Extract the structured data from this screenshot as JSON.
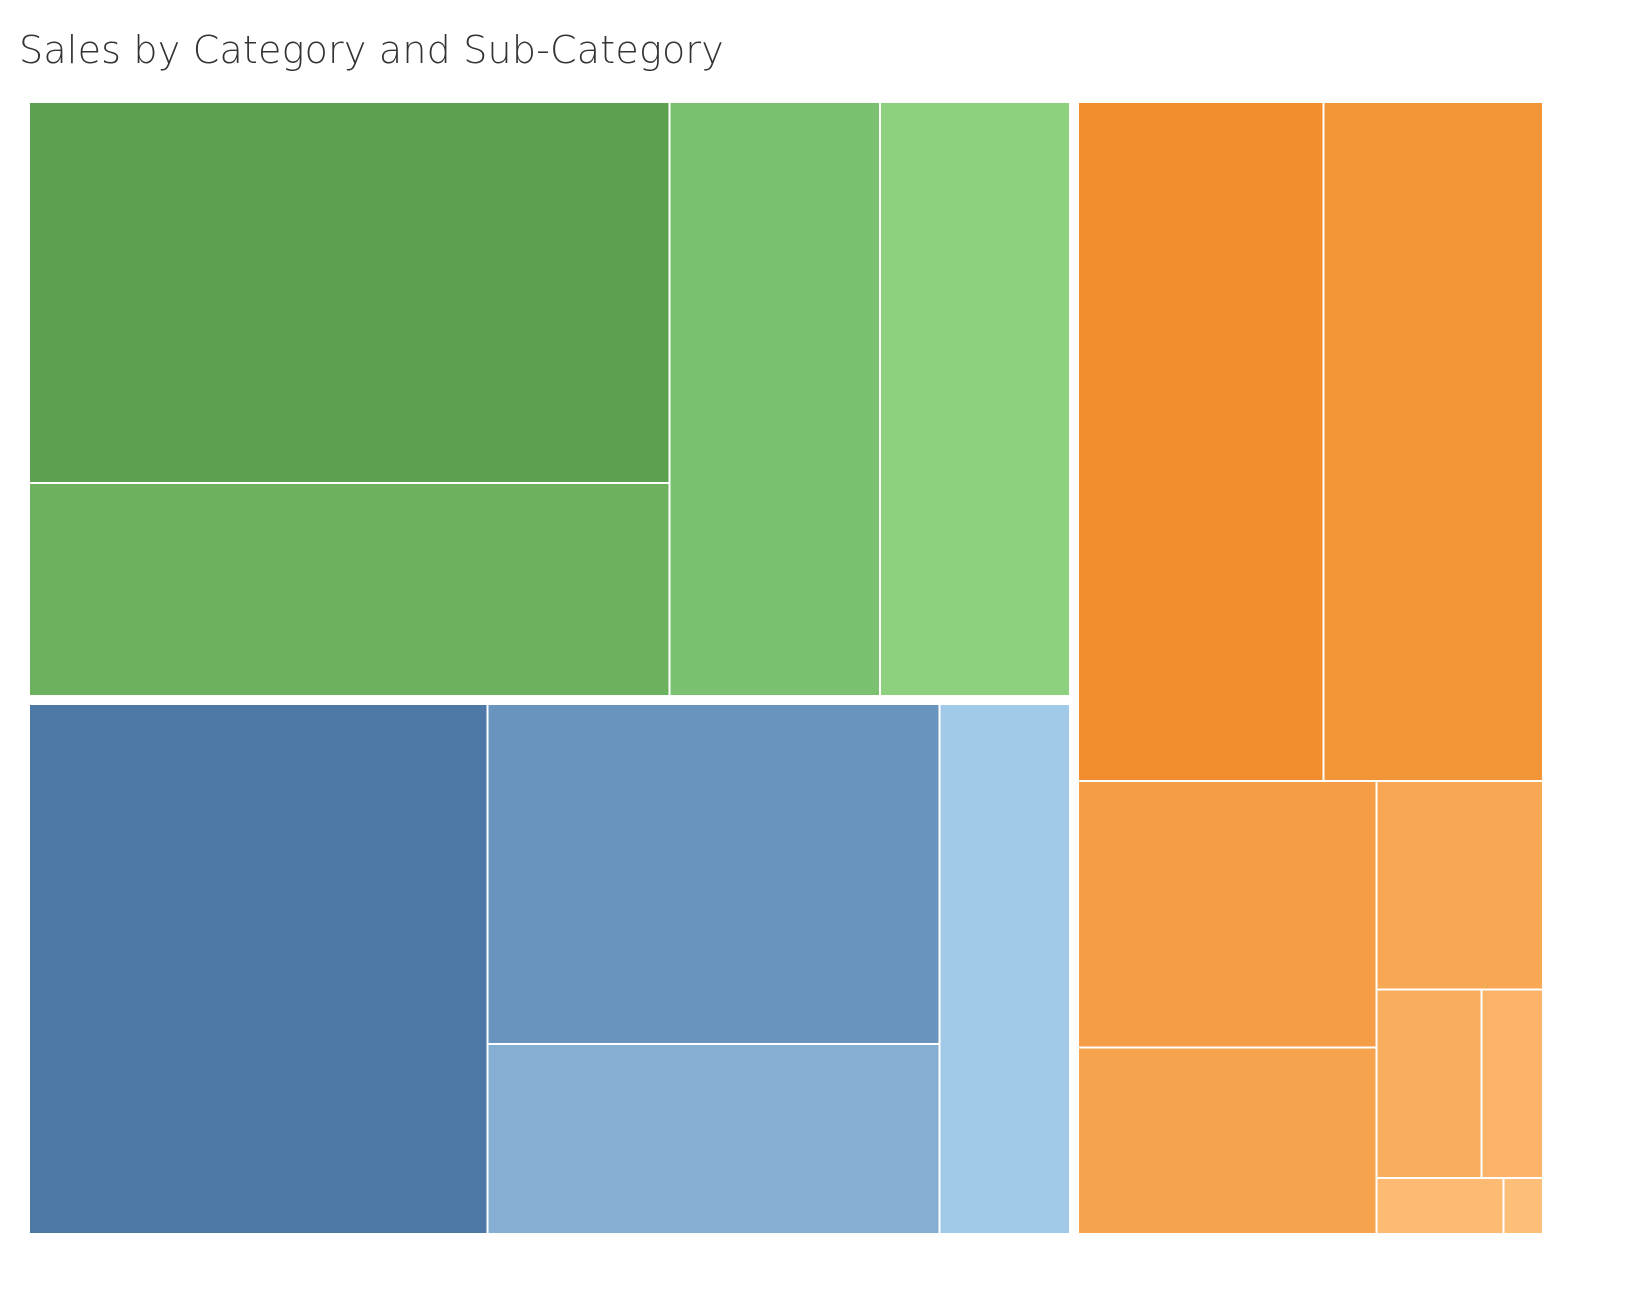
{
  "title": "Sales by Category and Sub-Category",
  "chart_data": {
    "type": "treemap",
    "title": "Sales by Category and Sub-Category",
    "legend": "none",
    "labels_shown": false,
    "groups": [
      {
        "name": "",
        "color_family": "green",
        "tiles": [
          {
            "rel_size": 24448,
            "color": "#5CA150"
          },
          {
            "rel_size": 13686,
            "color": "#6CB25E"
          },
          {
            "rel_size": 12544,
            "color": "#7AC170"
          },
          {
            "rel_size": 11306,
            "color": "#8DD17F"
          }
        ]
      },
      {
        "name": "",
        "color_family": "blue",
        "tiles": [
          {
            "rel_size": 24380,
            "color": "#4E79A7"
          },
          {
            "rel_size": 15424,
            "color": "#6894BD"
          },
          {
            "rel_size": 8608,
            "color": "#84AFD2"
          },
          {
            "rel_size": 6928,
            "color": "#A0CAE8"
          }
        ]
      },
      {
        "name": "",
        "color_family": "orange",
        "tiles": [
          {
            "rel_size": 16695,
            "color": "#F28E2E"
          },
          {
            "rel_size": 14898,
            "color": "#F29536"
          },
          {
            "rel_size": 7951,
            "color": "#F59E47"
          },
          {
            "rel_size": 5576,
            "color": "#F5A34C"
          },
          {
            "rel_size": 3468,
            "color": "#F8A854"
          },
          {
            "rel_size": 1979,
            "color": "#F9AD5F"
          },
          {
            "rel_size": 1163,
            "color": "#FBB36A"
          },
          {
            "rel_size": 711,
            "color": "#FCBA73"
          },
          {
            "rel_size": 222,
            "color": "#FDBE78"
          }
        ]
      }
    ]
  }
}
